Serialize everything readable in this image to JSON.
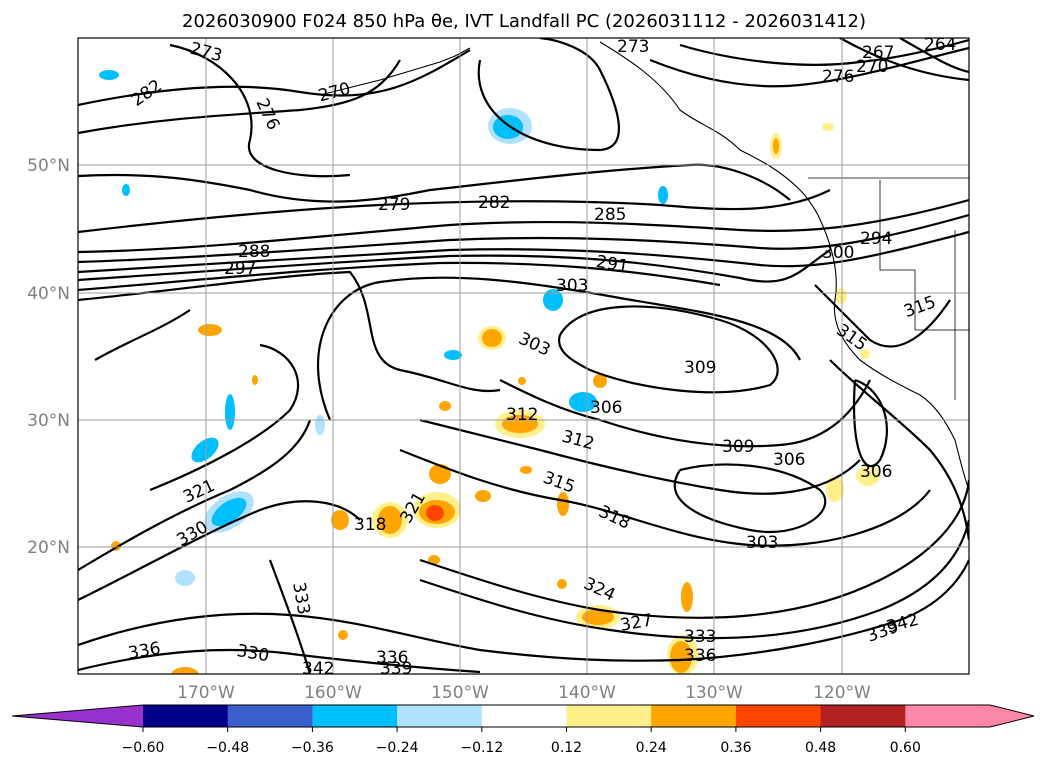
{
  "title": "2026030900 F024 850 hPa θe, IVT Landfall PC (2026031112 - 2026031412)",
  "lat_labels": [
    "50°N",
    "40°N",
    "30°N",
    "20°N"
  ],
  "lon_labels": [
    "170°W",
    "160°W",
    "150°W",
    "140°W",
    "130°W",
    "120°W"
  ],
  "contour_labels": [
    "273",
    "282",
    "276",
    "270",
    "273",
    "267",
    "270",
    "276",
    "264",
    "279",
    "282",
    "285",
    "288",
    "297",
    "291",
    "294",
    "300",
    "303",
    "303",
    "309",
    "315",
    "315",
    "312",
    "306",
    "312",
    "309",
    "306",
    "306",
    "315",
    "321",
    "318",
    "321",
    "330",
    "318",
    "303",
    "324",
    "327",
    "333",
    "333",
    "336",
    "336",
    "330",
    "336",
    "342",
    "339",
    "342",
    "339"
  ],
  "colorbar": {
    "ticks": [
      "−0.60",
      "−0.48",
      "−0.36",
      "−0.24",
      "−0.12",
      "0.12",
      "0.24",
      "0.36",
      "0.48",
      "0.60"
    ],
    "colors": [
      "#9932cc",
      "#00008b",
      "#3a5fcd",
      "#00bfff",
      "#b0e2ff",
      "#ffffff",
      "#fff08c",
      "#ffa500",
      "#ff4500",
      "#b22222",
      "#ff88aa",
      "#ff88aa"
    ]
  }
}
